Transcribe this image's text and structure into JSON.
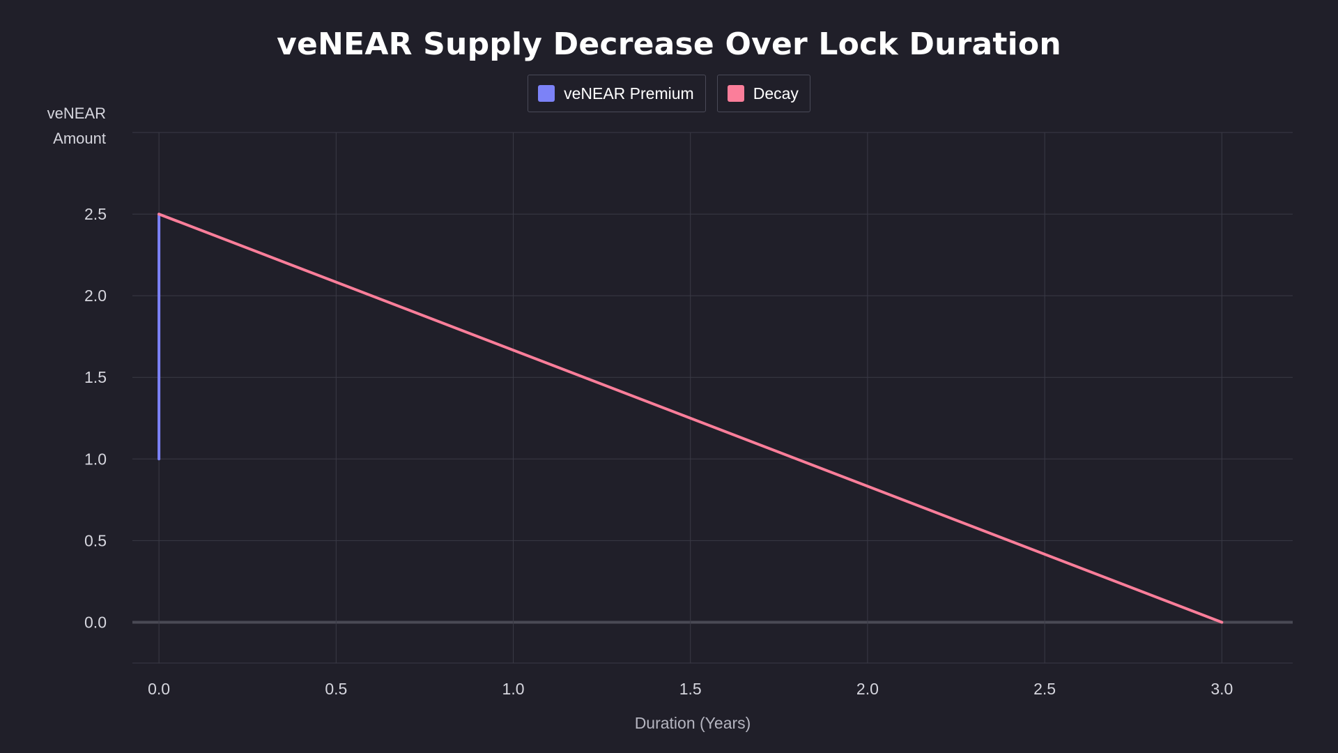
{
  "chart_data": {
    "type": "line",
    "title": "veNEAR Supply Decrease Over Lock Duration",
    "xlabel": "Duration (Years)",
    "ylabel": "veNEAR\nAmount",
    "xlim": [
      -0.075,
      3.2
    ],
    "ylim": [
      -0.25,
      3.0
    ],
    "xticks": [
      "0.0",
      "0.5",
      "1.0",
      "1.5",
      "2.0",
      "2.5",
      "3.0"
    ],
    "yticks": [
      "0.0",
      "0.5",
      "1.0",
      "1.5",
      "2.0",
      "2.5"
    ],
    "grid": true,
    "legend_position": "top-center",
    "series": [
      {
        "name": "veNEAR Premium",
        "color": "#7c82f7",
        "x": [
          0,
          0
        ],
        "y": [
          1.0,
          2.5
        ]
      },
      {
        "name": "Decay",
        "color": "#fb7e9a",
        "x": [
          0,
          3
        ],
        "y": [
          2.5,
          0.0
        ]
      }
    ]
  },
  "colors": {
    "background": "#201f29",
    "grid": "#3a3a46",
    "zero_line": "#4a4a55"
  }
}
